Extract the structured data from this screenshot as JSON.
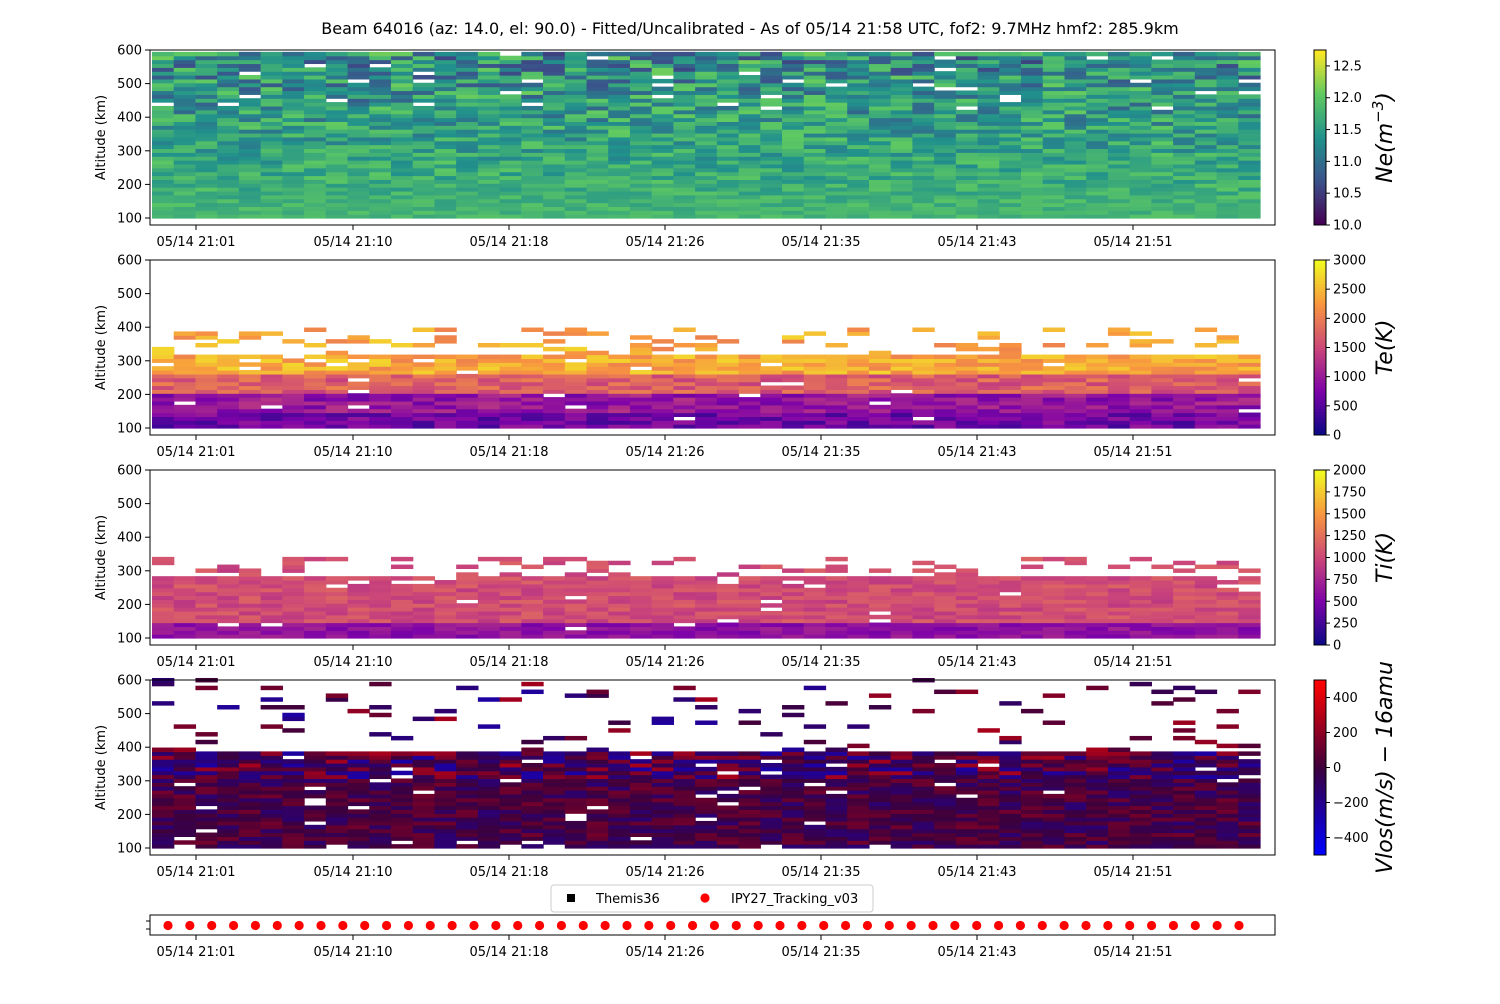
{
  "figure": {
    "title": "Beam 64016 (az: 14.0, el: 90.0) - Fitted/Uncalibrated - As of 05/14 21:58 UTC, fof2: 9.7MHz  hmf2: 285.9km"
  },
  "chart_data": [
    {
      "type": "heatmap",
      "id": "ne",
      "ylabel": "Altitude (km)",
      "xticks": [
        "05/14 21:01",
        "05/14 21:10",
        "05/14 21:18",
        "05/14 21:26",
        "05/14 21:35",
        "05/14 21:43",
        "05/14 21:51"
      ],
      "yticks": [
        "100",
        "200",
        "300",
        "400",
        "500",
        "600"
      ],
      "ylim": [
        90,
        600
      ],
      "altitude_range_km": [
        100,
        590
      ],
      "time_range": [
        "05/14 21:00",
        "05/14 21:58"
      ],
      "columns": 51,
      "colorbar": {
        "label": "Ne(m^-3)",
        "label_main": "Ne(m",
        "label_sup": "−3",
        "label_end": ")",
        "range": [
          10.0,
          12.75
        ],
        "ticks": [
          "10.0",
          "10.5",
          "11.0",
          "11.5",
          "12.0",
          "12.5"
        ],
        "colormap": "viridis"
      }
    },
    {
      "type": "heatmap",
      "id": "te",
      "ylabel": "Altitude (km)",
      "xticks": [
        "05/14 21:01",
        "05/14 21:10",
        "05/14 21:18",
        "05/14 21:26",
        "05/14 21:35",
        "05/14 21:43",
        "05/14 21:51"
      ],
      "yticks": [
        "100",
        "200",
        "300",
        "400",
        "500",
        "600"
      ],
      "ylim": [
        90,
        600
      ],
      "altitude_range_km": [
        100,
        390
      ],
      "columns": 51,
      "colorbar": {
        "label": "Te(K)",
        "range": [
          0,
          3000
        ],
        "ticks": [
          "0",
          "500",
          "1000",
          "1500",
          "2000",
          "2500",
          "3000"
        ],
        "colormap": "plasma"
      }
    },
    {
      "type": "heatmap",
      "id": "ti",
      "ylabel": "Altitude (km)",
      "xticks": [
        "05/14 21:01",
        "05/14 21:10",
        "05/14 21:18",
        "05/14 21:26",
        "05/14 21:35",
        "05/14 21:43",
        "05/14 21:51"
      ],
      "yticks": [
        "100",
        "200",
        "300",
        "400",
        "500",
        "600"
      ],
      "ylim": [
        90,
        600
      ],
      "altitude_range_km": [
        100,
        340
      ],
      "columns": 51,
      "colorbar": {
        "label": "Ti(K)",
        "range": [
          0,
          2000
        ],
        "ticks": [
          "0",
          "250",
          "500",
          "750",
          "1000",
          "1250",
          "1500",
          "1750",
          "2000"
        ],
        "colormap": "plasma"
      }
    },
    {
      "type": "heatmap",
      "id": "vlos",
      "ylabel": "Altitude (km)",
      "xticks": [
        "05/14 21:01",
        "05/14 21:10",
        "05/14 21:18",
        "05/14 21:26",
        "05/14 21:35",
        "05/14 21:43",
        "05/14 21:51"
      ],
      "yticks": [
        "100",
        "200",
        "300",
        "400",
        "500",
        "600"
      ],
      "ylim": [
        90,
        600
      ],
      "altitude_range_km": [
        100,
        600
      ],
      "columns": 51,
      "colorbar": {
        "label": "Vlos(m/s) − 16amu",
        "range": [
          -500,
          500
        ],
        "ticks": [
          "−400",
          "−200",
          "0",
          "200",
          "400"
        ],
        "colormap": "blue-dark-red"
      }
    },
    {
      "type": "scatter",
      "id": "modes",
      "xticks": [
        "05/14 21:01",
        "05/14 21:10",
        "05/14 21:18",
        "05/14 21:26",
        "05/14 21:35",
        "05/14 21:43",
        "05/14 21:51"
      ],
      "legend": [
        {
          "name": "Themis36",
          "marker": "square",
          "color": "#000000"
        },
        {
          "name": "IPY27_Tracking_v03",
          "marker": "circle",
          "color": "#ff0000"
        }
      ],
      "legend_position": "top-center",
      "series": [
        {
          "name": "IPY27_Tracking_v03",
          "count": 50
        },
        {
          "name": "Themis36",
          "count": 0
        }
      ]
    }
  ]
}
